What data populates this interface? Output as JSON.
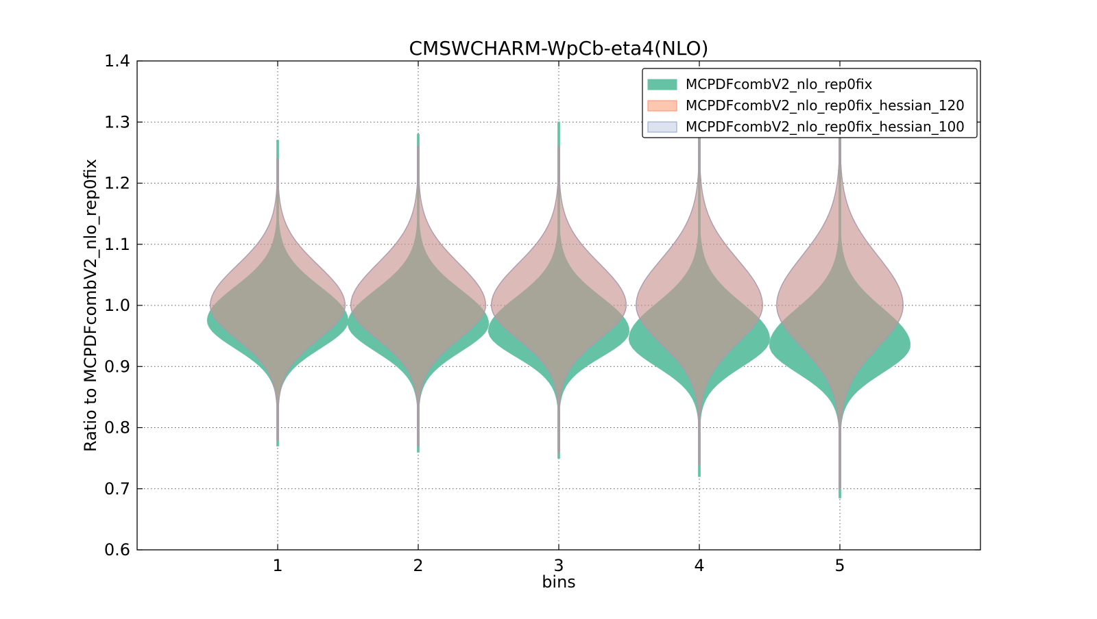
{
  "chart_data": {
    "type": "violin",
    "title": "CMSWCHARM-WpCb-eta4(NLO)",
    "xlabel": "bins",
    "ylabel": "Ratio to MCPDFcombV2_nlo_rep0fix",
    "ylim": [
      0.6,
      1.4
    ],
    "xlim": [
      0,
      6
    ],
    "y_ticks": [
      "0.6",
      "0.7",
      "0.8",
      "0.9",
      "1.0",
      "1.1",
      "1.2",
      "1.3",
      "1.4"
    ],
    "x_ticks": [
      "1",
      "2",
      "3",
      "4",
      "5"
    ],
    "grid": true,
    "legend_position": "top-right",
    "series": [
      {
        "name": "MCPDFcombV2_nlo_rep0fix",
        "fill": "#66c2a5",
        "edge": "#66c2a5",
        "opacity": 1.0,
        "bins": [
          {
            "x": 1,
            "min": 0.77,
            "max": 1.27,
            "center": 0.975,
            "sigma_lo": 0.045,
            "sigma_hi": 0.055,
            "half_width": 0.5
          },
          {
            "x": 2,
            "min": 0.76,
            "max": 1.28,
            "center": 0.97,
            "sigma_lo": 0.045,
            "sigma_hi": 0.055,
            "half_width": 0.5
          },
          {
            "x": 3,
            "min": 0.75,
            "max": 1.3,
            "center": 0.958,
            "sigma_lo": 0.042,
            "sigma_hi": 0.055,
            "half_width": 0.5
          },
          {
            "x": 4,
            "min": 0.72,
            "max": 1.32,
            "center": 0.945,
            "sigma_lo": 0.045,
            "sigma_hi": 0.058,
            "half_width": 0.5
          },
          {
            "x": 5,
            "min": 0.685,
            "max": 1.32,
            "center": 0.935,
            "sigma_lo": 0.045,
            "sigma_hi": 0.06,
            "half_width": 0.5
          }
        ]
      },
      {
        "name": "MCPDFcombV2_nlo_rep0fix_hessian_120",
        "fill": "#fc8d62",
        "edge": "#fc8d62",
        "opacity": 0.5,
        "bins": [
          {
            "x": 1,
            "min": 0.78,
            "max": 1.24,
            "center": 1.0,
            "sigma_lo": 0.055,
            "sigma_hi": 0.065,
            "half_width": 0.48
          },
          {
            "x": 2,
            "min": 0.77,
            "max": 1.26,
            "center": 1.0,
            "sigma_lo": 0.055,
            "sigma_hi": 0.068,
            "half_width": 0.48
          },
          {
            "x": 3,
            "min": 0.76,
            "max": 1.26,
            "center": 1.0,
            "sigma_lo": 0.055,
            "sigma_hi": 0.068,
            "half_width": 0.48
          },
          {
            "x": 4,
            "min": 0.74,
            "max": 1.3,
            "center": 1.0,
            "sigma_lo": 0.062,
            "sigma_hi": 0.075,
            "half_width": 0.45
          },
          {
            "x": 5,
            "min": 0.7,
            "max": 1.31,
            "center": 1.0,
            "sigma_lo": 0.068,
            "sigma_hi": 0.08,
            "half_width": 0.45
          }
        ]
      },
      {
        "name": "MCPDFcombV2_nlo_rep0fix_hessian_100",
        "fill": "#8da0cb",
        "edge": "#8da0cb",
        "opacity": 0.3,
        "bins": [
          {
            "x": 1,
            "min": 0.78,
            "max": 1.24,
            "center": 1.0,
            "sigma_lo": 0.055,
            "sigma_hi": 0.065,
            "half_width": 0.48
          },
          {
            "x": 2,
            "min": 0.77,
            "max": 1.26,
            "center": 1.0,
            "sigma_lo": 0.055,
            "sigma_hi": 0.068,
            "half_width": 0.48
          },
          {
            "x": 3,
            "min": 0.76,
            "max": 1.26,
            "center": 1.0,
            "sigma_lo": 0.055,
            "sigma_hi": 0.068,
            "half_width": 0.48
          },
          {
            "x": 4,
            "min": 0.74,
            "max": 1.3,
            "center": 1.0,
            "sigma_lo": 0.062,
            "sigma_hi": 0.075,
            "half_width": 0.45
          },
          {
            "x": 5,
            "min": 0.7,
            "max": 1.31,
            "center": 1.0,
            "sigma_lo": 0.068,
            "sigma_hi": 0.08,
            "half_width": 0.45
          }
        ]
      }
    ]
  }
}
